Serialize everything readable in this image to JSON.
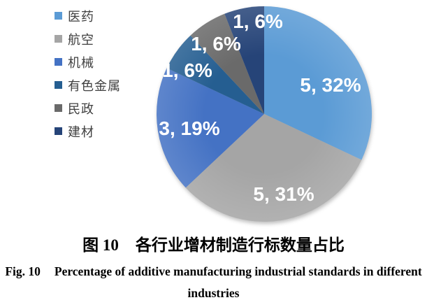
{
  "figure": {
    "caption_cn": {
      "label": "图 10",
      "text": "各行业增材制造行标数量占比"
    },
    "caption_en": {
      "label": "Fig. 10",
      "text": "Percentage of additive manufacturing industrial standards in different industries"
    }
  },
  "chart_data": {
    "type": "pie",
    "title": "各行业增材制造行标数量占比",
    "legend_position": "left",
    "start_angle_deg": 0,
    "direction": "clockwise",
    "label_format": "count, percent",
    "label_text_color": "#FFFFFF",
    "slices": [
      {
        "name": "医药",
        "count": 5,
        "pct": 32,
        "label": "5, 32%",
        "color": "#5B9BD5"
      },
      {
        "name": "航空",
        "count": 5,
        "pct": 31,
        "label": "5, 31%",
        "color": "#A5A5A5"
      },
      {
        "name": "机械",
        "count": 3,
        "pct": 19,
        "label": "3, 19%",
        "color": "#4472C4"
      },
      {
        "name": "有色金属",
        "count": 1,
        "pct": 6,
        "label": "1, 6%",
        "color": "#255E91"
      },
      {
        "name": "民政",
        "count": 1,
        "pct": 6,
        "label": "1, 6%",
        "color": "#6A6A6A"
      },
      {
        "name": "建材",
        "count": 1,
        "pct": 6,
        "label": "1, 6%",
        "color": "#264478"
      }
    ]
  }
}
